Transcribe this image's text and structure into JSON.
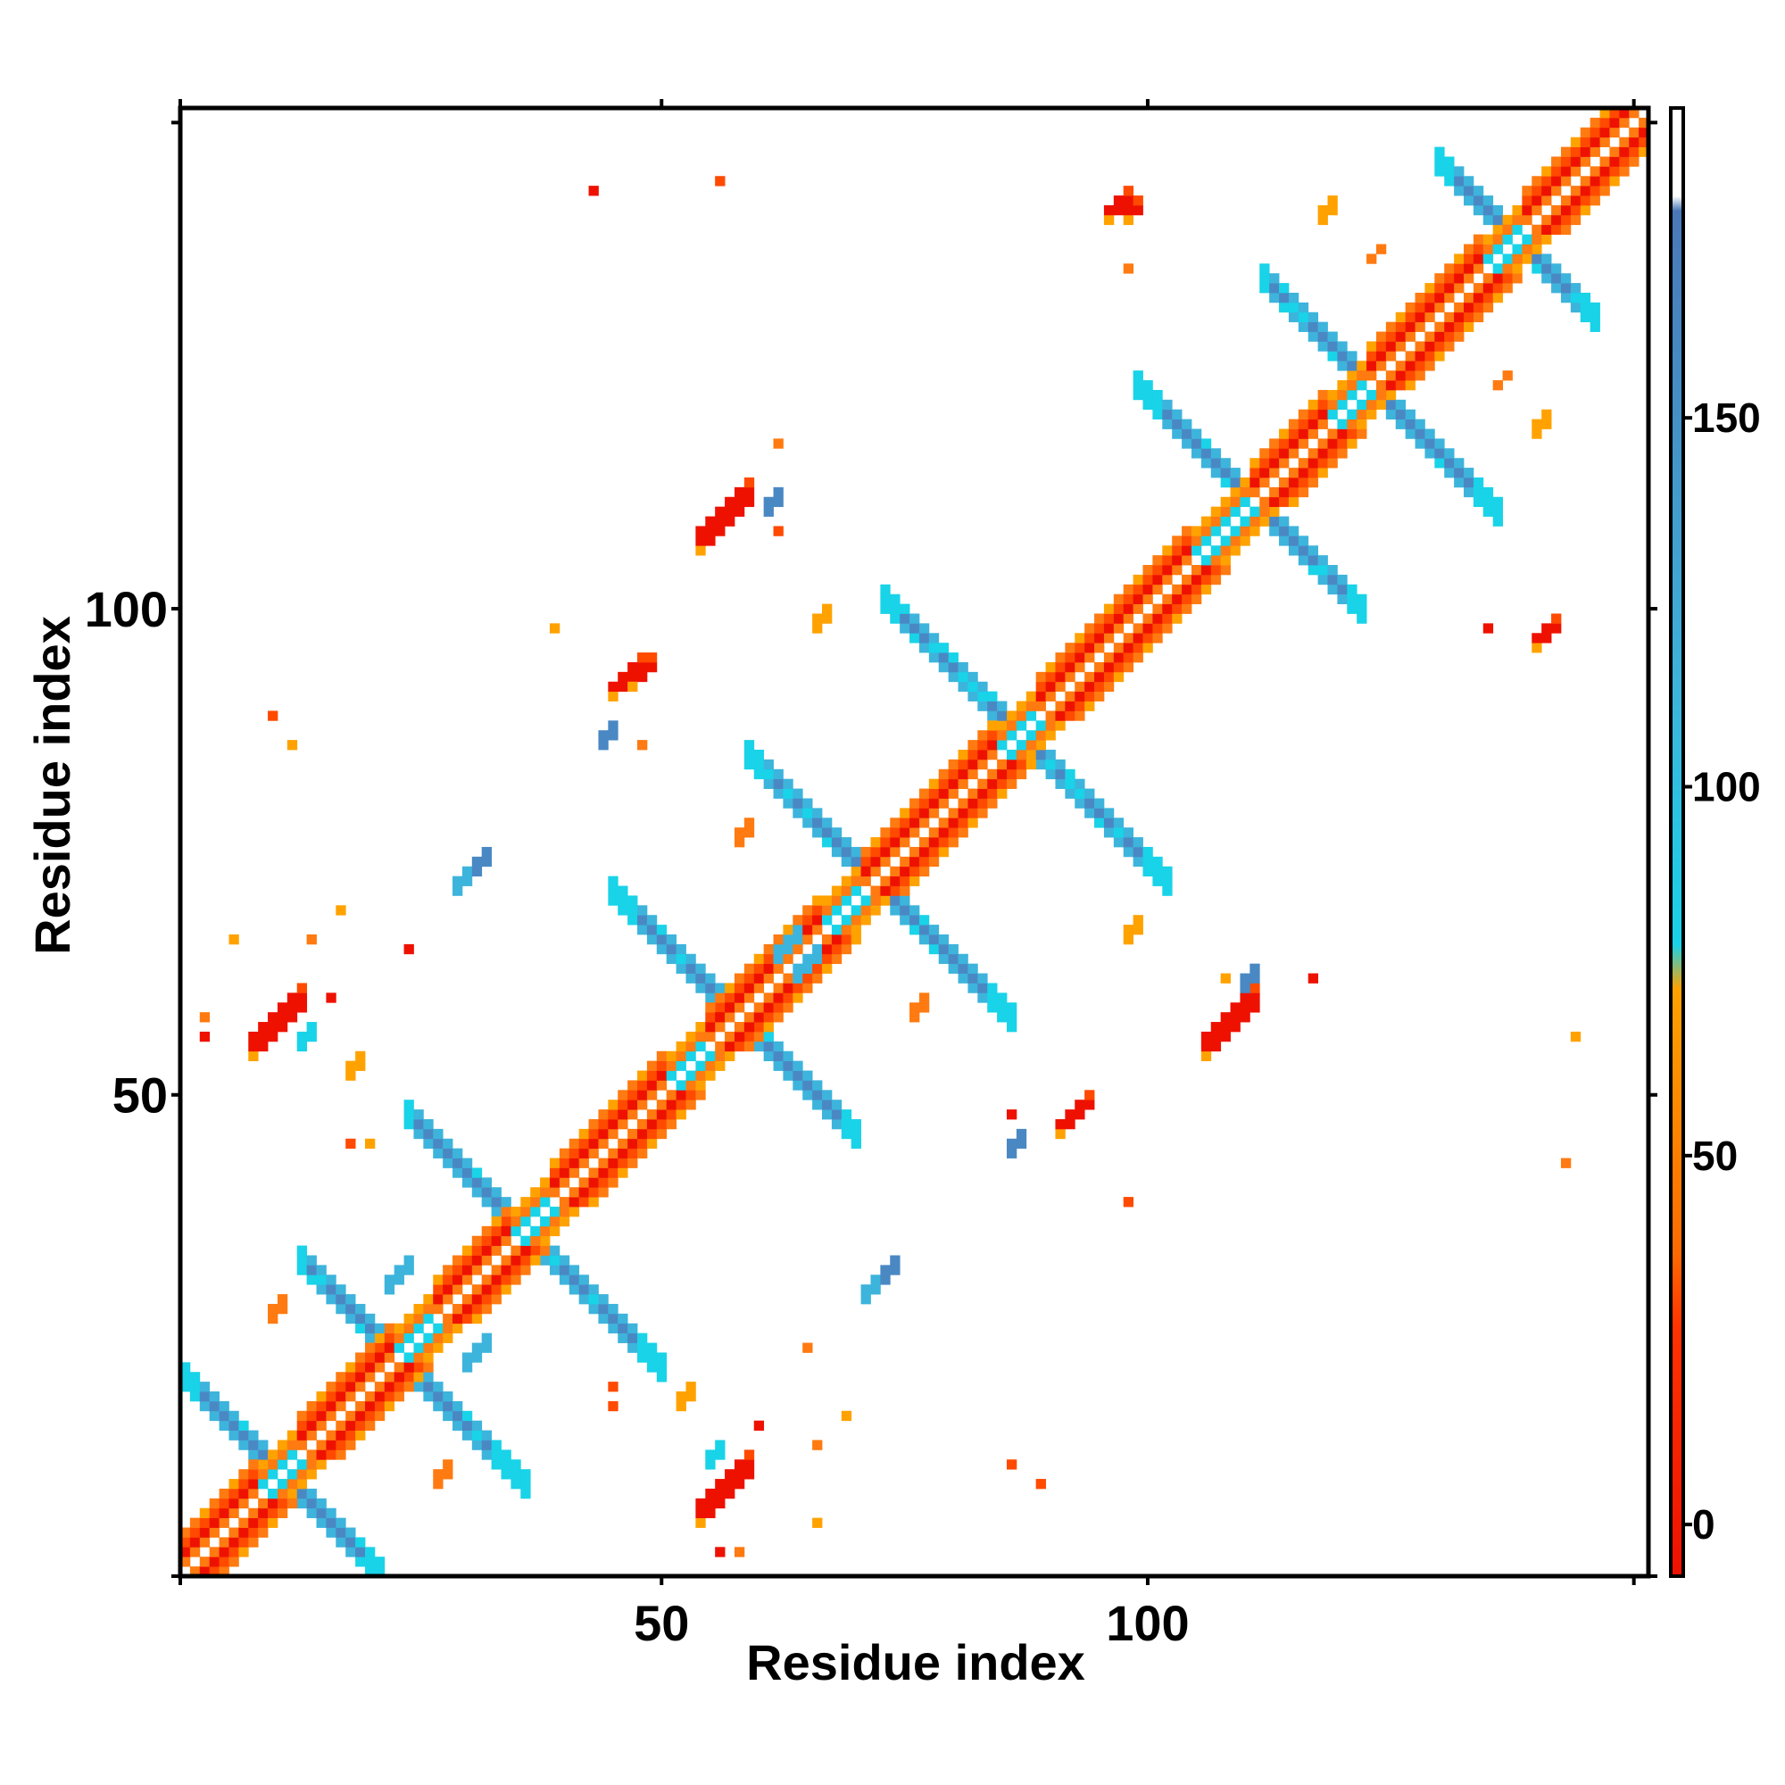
{
  "chart_data": {
    "type": "heatmap",
    "title": "",
    "xlabel": "Residue index",
    "ylabel": "Residue index",
    "xlim": [
      0.5,
      151.5
    ],
    "ylim": [
      0.5,
      151.5
    ],
    "x_ticks": [
      50,
      100
    ],
    "y_ticks": [
      50,
      100
    ],
    "grid": false,
    "legend": "colorbar right",
    "colorbar": {
      "ticks": [
        0,
        50,
        100,
        150
      ],
      "range": [
        -7,
        192
      ],
      "bands": [
        {
          "from": -7,
          "to": 30,
          "color": "#ee1100"
        },
        {
          "from": 30,
          "to": 80,
          "color": "#ff6a00"
        },
        {
          "from": 80,
          "to": 180,
          "color": "#4a90c8"
        },
        {
          "from": 180,
          "to": 192,
          "color": "#ffffff"
        }
      ]
    },
    "palette": {
      "red": "#ee1100",
      "orange_red": "#ff4a00",
      "orange": "#ff7a10",
      "amber": "#ffa200",
      "cyan": "#19d3e8",
      "sky": "#3db4dc",
      "steel": "#4a88c4",
      "white": "#ffffff"
    },
    "diagonal": {
      "start": 1,
      "end": 151,
      "segments": [
        {
          "from": 1,
          "to": 8,
          "structure": "helix"
        },
        {
          "from": 9,
          "to": 12,
          "structure": "coil"
        },
        {
          "from": 13,
          "to": 22,
          "structure": "helix"
        },
        {
          "from": 23,
          "to": 26,
          "structure": "coil"
        },
        {
          "from": 27,
          "to": 34,
          "structure": "helix"
        },
        {
          "from": 35,
          "to": 38,
          "structure": "coil"
        },
        {
          "from": 39,
          "to": 50,
          "structure": "helix"
        },
        {
          "from": 51,
          "to": 54,
          "structure": "coil"
        },
        {
          "from": 55,
          "to": 66,
          "structure": "helix"
        },
        {
          "from": 67,
          "to": 70,
          "structure": "coil"
        },
        {
          "from": 71,
          "to": 84,
          "structure": "helix"
        },
        {
          "from": 85,
          "to": 88,
          "structure": "coil"
        },
        {
          "from": 89,
          "to": 104,
          "structure": "helix"
        },
        {
          "from": 105,
          "to": 110,
          "structure": "coil"
        },
        {
          "from": 111,
          "to": 118,
          "structure": "helix"
        },
        {
          "from": 119,
          "to": 122,
          "structure": "coil"
        },
        {
          "from": 123,
          "to": 134,
          "structure": "helix"
        },
        {
          "from": 135,
          "to": 138,
          "structure": "coil"
        },
        {
          "from": 139,
          "to": 151,
          "structure": "helix"
        }
      ]
    },
    "antidiagonal_bands": [
      {
        "center": 11,
        "from": 1,
        "to": 21
      },
      {
        "center": 23,
        "from": 13,
        "to": 36
      },
      {
        "center": 36,
        "from": 24,
        "to": 50
      },
      {
        "center": 58,
        "from": 45,
        "to": 70
      },
      {
        "center": 72,
        "from": 59,
        "to": 86
      },
      {
        "center": 87,
        "from": 73,
        "to": 102
      },
      {
        "center": 111,
        "from": 99,
        "to": 122
      },
      {
        "center": 123,
        "from": 112,
        "to": 136
      },
      {
        "center": 138,
        "from": 130,
        "to": 146
      }
    ],
    "contact_patches": [
      {
        "i": 54,
        "j": 6,
        "w": 6,
        "h": 3,
        "color": "red"
      },
      {
        "i": 8,
        "j": 54,
        "w": 6,
        "h": 3,
        "color": "red"
      },
      {
        "i": 106,
        "j": 54,
        "w": 6,
        "h": 3,
        "color": "red"
      },
      {
        "i": 54,
        "j": 106,
        "w": 6,
        "h": 3,
        "color": "red"
      },
      {
        "i": 91,
        "j": 46,
        "w": 4,
        "h": 2,
        "color": "red"
      },
      {
        "i": 45,
        "j": 91,
        "w": 4,
        "h": 2,
        "color": "red"
      },
      {
        "i": 47,
        "j": 92,
        "w": 3,
        "h": 2,
        "color": "red"
      },
      {
        "i": 140,
        "j": 96,
        "w": 3,
        "h": 2,
        "color": "red"
      },
      {
        "i": 96,
        "j": 140,
        "w": 3,
        "h": 2,
        "color": "red"
      },
      {
        "i": 98,
        "j": 140,
        "w": 2,
        "h": 2,
        "color": "red"
      },
      {
        "i": 22,
        "j": 30,
        "w": 3,
        "h": 2,
        "color": "sky"
      },
      {
        "i": 30,
        "j": 22,
        "w": 3,
        "h": 2,
        "color": "sky"
      },
      {
        "i": 64,
        "j": 62,
        "w": 3,
        "h": 2,
        "color": "sky"
      },
      {
        "i": 62,
        "j": 64,
        "w": 3,
        "h": 2,
        "color": "sky"
      },
      {
        "i": 71,
        "j": 29,
        "w": 3,
        "h": 2,
        "color": "sky"
      },
      {
        "i": 29,
        "j": 71,
        "w": 3,
        "h": 2,
        "color": "sky"
      },
      {
        "i": 55,
        "j": 12,
        "w": 2,
        "h": 2,
        "color": "cyan"
      },
      {
        "i": 13,
        "j": 55,
        "w": 2,
        "h": 2,
        "color": "cyan"
      },
      {
        "i": 110,
        "j": 61,
        "w": 2,
        "h": 2,
        "color": "steel"
      },
      {
        "i": 61,
        "j": 110,
        "w": 2,
        "h": 2,
        "color": "steel"
      },
      {
        "i": 86,
        "j": 44,
        "w": 2,
        "h": 2,
        "color": "steel"
      },
      {
        "i": 44,
        "j": 86,
        "w": 2,
        "h": 2,
        "color": "steel"
      },
      {
        "i": 31,
        "j": 73,
        "w": 2,
        "h": 2,
        "color": "steel"
      },
      {
        "i": 73,
        "j": 31,
        "w": 2,
        "h": 2,
        "color": "steel"
      },
      {
        "i": 136,
        "j": 123,
        "w": 2,
        "h": 1,
        "color": "orange"
      },
      {
        "i": 123,
        "j": 136,
        "w": 2,
        "h": 1,
        "color": "orange"
      },
      {
        "i": 118,
        "j": 140,
        "w": 2,
        "h": 2,
        "color": "amber"
      },
      {
        "i": 140,
        "j": 118,
        "w": 2,
        "h": 2,
        "color": "amber"
      },
      {
        "i": 66,
        "j": 98,
        "w": 2,
        "h": 2,
        "color": "amber"
      },
      {
        "i": 98,
        "j": 66,
        "w": 2,
        "h": 2,
        "color": "amber"
      },
      {
        "i": 10,
        "j": 27,
        "w": 2,
        "h": 2,
        "color": "orange"
      },
      {
        "i": 27,
        "j": 10,
        "w": 2,
        "h": 2,
        "color": "orange"
      },
      {
        "i": 52,
        "j": 18,
        "w": 2,
        "h": 2,
        "color": "amber"
      },
      {
        "i": 18,
        "j": 52,
        "w": 2,
        "h": 2,
        "color": "amber"
      },
      {
        "i": 58,
        "j": 76,
        "w": 2,
        "h": 2,
        "color": "orange"
      },
      {
        "i": 76,
        "j": 58,
        "w": 2,
        "h": 2,
        "color": "orange"
      }
    ],
    "scattered_points": [
      {
        "i": 56,
        "j": 3
      },
      {
        "i": 58,
        "j": 3
      },
      {
        "i": 66,
        "j": 6
      },
      {
        "i": 45,
        "j": 18
      },
      {
        "i": 60,
        "j": 16
      },
      {
        "i": 66,
        "j": 14
      },
      {
        "i": 69,
        "j": 17
      },
      {
        "i": 89,
        "j": 10
      },
      {
        "i": 3,
        "j": 56
      },
      {
        "i": 3,
        "j": 58
      },
      {
        "i": 6,
        "j": 66
      },
      {
        "i": 18,
        "j": 45
      },
      {
        "i": 16,
        "j": 60
      },
      {
        "i": 14,
        "j": 66
      },
      {
        "i": 17,
        "j": 69
      },
      {
        "i": 10,
        "j": 89
      },
      {
        "i": 24,
        "j": 65
      },
      {
        "i": 65,
        "j": 24
      },
      {
        "i": 20,
        "j": 45
      },
      {
        "i": 45,
        "j": 20
      },
      {
        "i": 86,
        "j": 48
      },
      {
        "i": 48,
        "j": 86
      },
      {
        "i": 144,
        "j": 56
      },
      {
        "i": 56,
        "j": 144
      },
      {
        "i": 135,
        "j": 98
      },
      {
        "i": 98,
        "j": 135
      },
      {
        "i": 108,
        "j": 62
      },
      {
        "i": 62,
        "j": 108
      },
      {
        "i": 117,
        "j": 62
      },
      {
        "i": 62,
        "j": 117
      },
      {
        "i": 12,
        "j": 86
      },
      {
        "i": 86,
        "j": 12
      },
      {
        "i": 43,
        "j": 143
      },
      {
        "i": 143,
        "j": 43
      },
      {
        "i": 39,
        "j": 98
      },
      {
        "i": 98,
        "j": 39
      }
    ]
  }
}
